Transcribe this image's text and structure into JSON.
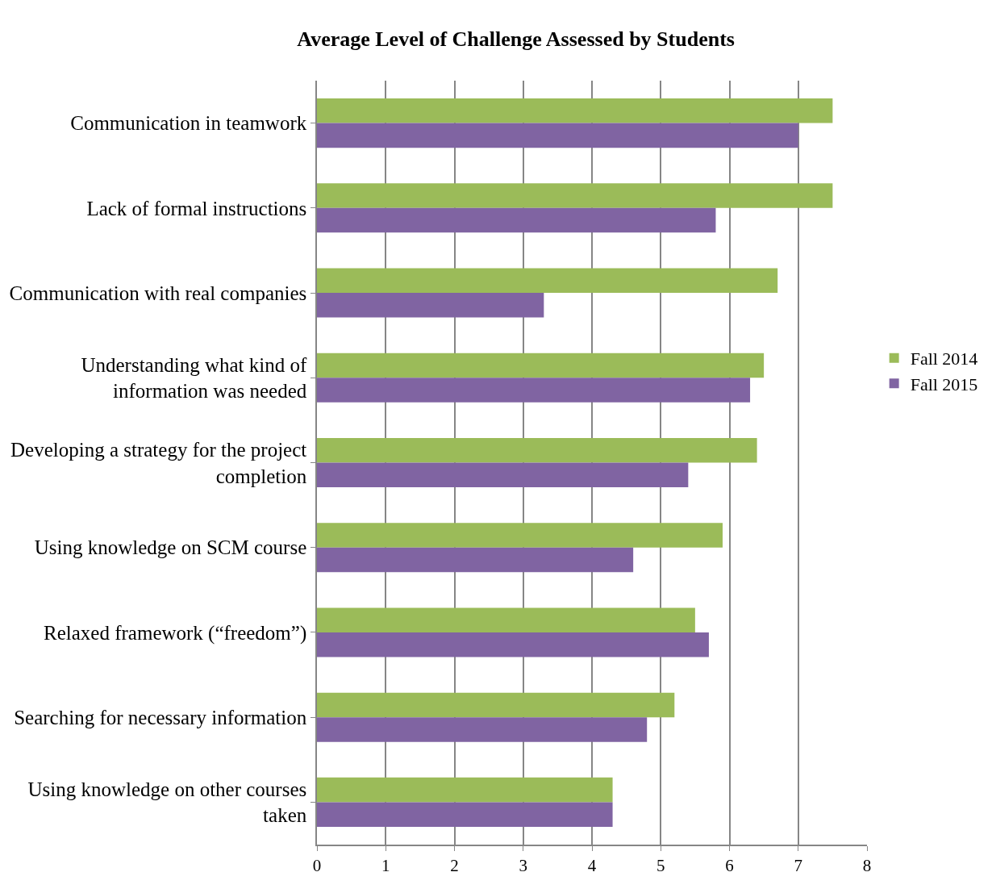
{
  "chart_data": {
    "type": "bar",
    "orientation": "horizontal",
    "title": "Average Level of Challenge Assessed by Students",
    "categories": [
      "Communication in teamwork",
      "Lack of formal instructions",
      "Communication with real companies",
      "Understanding what kind of information was needed",
      "Developing a strategy for the project completion",
      "Using knowledge on SCM course",
      "Relaxed framework (“freedom”)",
      "Searching for necessary information",
      "Using knowledge on other courses taken"
    ],
    "series": [
      {
        "name": "Fall 2014",
        "color": "#9bbb59",
        "values": [
          7.5,
          7.5,
          6.7,
          6.5,
          6.4,
          5.9,
          5.5,
          5.2,
          4.3
        ]
      },
      {
        "name": "Fall 2015",
        "color": "#8064a2",
        "values": [
          7.0,
          5.8,
          3.3,
          6.3,
          5.4,
          4.6,
          5.7,
          4.8,
          4.3
        ]
      }
    ],
    "xlim": [
      0,
      8
    ],
    "xticks": [
      0,
      1,
      2,
      3,
      4,
      5,
      6,
      7,
      8
    ],
    "grid": "x",
    "legend": "right"
  }
}
